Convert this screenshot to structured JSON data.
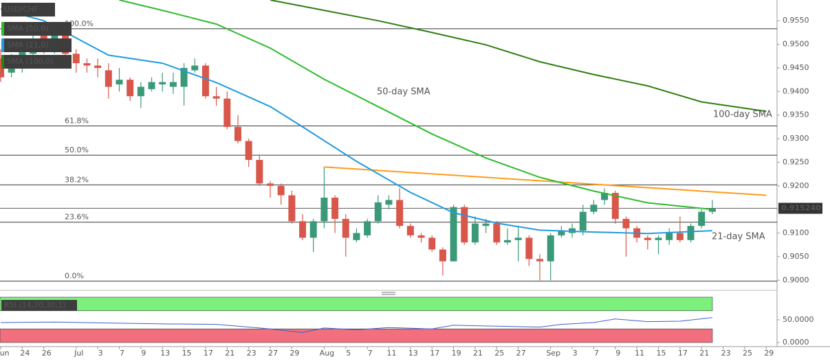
{
  "chart_data": [
    {
      "type": "candlestick",
      "title": "USD/CHF",
      "legend": [
        {
          "name": "SMA (50,0)",
          "color": "#2dbb2d"
        },
        {
          "name": "SMA (21,0)",
          "color": "#1f9ae0"
        },
        {
          "name": "SMA (100,0)",
          "color": "#2f7d12"
        }
      ],
      "up_color": "#3a9a78",
      "down_color": "#d9574a",
      "open": [
        0.947,
        0.944,
        0.946,
        0.948,
        0.952,
        0.949,
        0.952,
        0.948,
        0.946,
        0.9455,
        0.9445,
        0.9415,
        0.9425,
        0.939,
        0.9405,
        0.9415,
        0.941,
        0.941,
        0.9445,
        0.9455,
        0.939,
        0.9385,
        0.9325,
        0.9295,
        0.9255,
        0.9205,
        0.92,
        0.918,
        0.9125,
        0.909,
        0.9125,
        0.9175,
        0.913,
        0.9085,
        0.9095,
        0.9125,
        0.916,
        0.917,
        0.9115,
        0.9095,
        0.909,
        0.9065,
        0.904,
        0.9155,
        0.908,
        0.9115,
        0.912,
        0.908,
        0.9085,
        0.909,
        0.9045,
        0.904,
        0.9095,
        0.91,
        0.9105,
        0.9145,
        0.917,
        0.9185,
        0.913,
        0.911,
        0.909,
        0.9085,
        0.9085,
        0.91,
        0.9085,
        0.9115,
        0.9145
      ],
      "high": [
        0.949,
        0.948,
        0.951,
        0.953,
        0.953,
        0.954,
        0.953,
        0.949,
        0.947,
        0.947,
        0.946,
        0.945,
        0.943,
        0.942,
        0.943,
        0.944,
        0.944,
        0.946,
        0.947,
        0.946,
        0.941,
        0.94,
        0.935,
        0.93,
        0.9265,
        0.921,
        0.9205,
        0.919,
        0.914,
        0.913,
        0.924,
        0.918,
        0.914,
        0.911,
        0.913,
        0.918,
        0.918,
        0.9195,
        0.912,
        0.91,
        0.9095,
        0.907,
        0.916,
        0.916,
        0.9135,
        0.913,
        0.9125,
        0.911,
        0.9115,
        0.9095,
        0.9055,
        0.91,
        0.9115,
        0.912,
        0.916,
        0.917,
        0.9195,
        0.919,
        0.9135,
        0.9115,
        0.9095,
        0.9095,
        0.911,
        0.9135,
        0.912,
        0.915,
        0.917
      ],
      "low": [
        0.942,
        0.943,
        0.944,
        0.947,
        0.948,
        0.948,
        0.947,
        0.944,
        0.944,
        0.943,
        0.9385,
        0.94,
        0.938,
        0.9365,
        0.94,
        0.94,
        0.9395,
        0.937,
        0.944,
        0.9385,
        0.937,
        0.932,
        0.929,
        0.924,
        0.92,
        0.9175,
        0.916,
        0.912,
        0.9085,
        0.906,
        0.911,
        0.91,
        0.905,
        0.908,
        0.909,
        0.912,
        0.915,
        0.911,
        0.909,
        0.908,
        0.906,
        0.901,
        0.904,
        0.9075,
        0.9075,
        0.91,
        0.9075,
        0.9075,
        0.904,
        0.903,
        0.9,
        0.9,
        0.909,
        0.909,
        0.9095,
        0.914,
        0.916,
        0.912,
        0.905,
        0.908,
        0.9065,
        0.9055,
        0.9075,
        0.908,
        0.908,
        0.911,
        0.914
      ],
      "close": [
        0.943,
        0.947,
        0.949,
        0.951,
        0.949,
        0.952,
        0.948,
        0.946,
        0.9455,
        0.945,
        0.941,
        0.9425,
        0.939,
        0.941,
        0.942,
        0.942,
        0.942,
        0.945,
        0.9455,
        0.939,
        0.9385,
        0.9325,
        0.9295,
        0.9255,
        0.9205,
        0.92,
        0.918,
        0.9125,
        0.909,
        0.9125,
        0.9175,
        0.913,
        0.909,
        0.91,
        0.9125,
        0.9165,
        0.917,
        0.9115,
        0.9095,
        0.909,
        0.9065,
        0.904,
        0.9155,
        0.908,
        0.912,
        0.912,
        0.908,
        0.9085,
        0.909,
        0.9045,
        0.904,
        0.9095,
        0.9105,
        0.911,
        0.9145,
        0.916,
        0.9185,
        0.913,
        0.911,
        0.909,
        0.9085,
        0.909,
        0.91,
        0.9085,
        0.9115,
        0.9145,
        0.9152
      ],
      "lines": [
        {
          "name": "50-day SMA",
          "color": "#2dbb2d",
          "x": [
            11,
            15,
            20,
            25,
            30,
            35,
            40,
            45,
            50,
            55,
            60,
            66
          ],
          "values": [
            0.9594,
            0.9572,
            0.9543,
            0.9492,
            0.9426,
            0.9368,
            0.931,
            0.9259,
            0.9218,
            0.9189,
            0.9164,
            0.915
          ]
        },
        {
          "name": "100-day SMA",
          "color": "#2f7d12",
          "x": [
            25,
            30,
            35,
            40,
            45,
            50,
            55,
            60,
            65,
            71
          ],
          "values": [
            0.9594,
            0.9572,
            0.955,
            0.9525,
            0.9499,
            0.9463,
            0.9436,
            0.9412,
            0.9378,
            0.9358
          ]
        },
        {
          "name": "21-day SMA",
          "color": "#1f9ae0",
          "x": [
            0,
            4,
            10,
            15,
            20,
            25,
            28,
            33,
            38,
            42,
            46,
            50,
            55,
            60,
            66
          ],
          "values": [
            0.9575,
            0.955,
            0.9477,
            0.946,
            0.9419,
            0.9368,
            0.9325,
            0.9252,
            0.9186,
            0.9143,
            0.9121,
            0.9106,
            0.9102,
            0.9099,
            0.9105
          ]
        }
      ],
      "trendline": {
        "color": "#ff9a1a",
        "x": [
          30,
          71
        ],
        "values": [
          0.924,
          0.918
        ]
      },
      "fibonacci": [
        {
          "value": 0.9533,
          "label": "100.0%"
        },
        {
          "value": 0.9327,
          "label": "61.8%"
        },
        {
          "value": 0.9265,
          "label": "50.0%"
        },
        {
          "value": 0.9202,
          "label": "38.2%"
        },
        {
          "value": 0.9123,
          "label": "23.6%"
        },
        {
          "value": 0.8998,
          "label": "0.0%"
        }
      ],
      "last_price": {
        "value": 0.91524,
        "label": "0.915240"
      },
      "xlim": [
        0,
        72
      ],
      "ylim": [
        0.898,
        0.9594
      ],
      "yticks": [
        {
          "value": 0.9,
          "label": "0.9000"
        },
        {
          "value": 0.905,
          "label": "0.9050"
        },
        {
          "value": 0.91,
          "label": "0.9100"
        },
        {
          "value": 0.915,
          "label": "0.9150"
        },
        {
          "value": 0.92,
          "label": "0.9200"
        },
        {
          "value": 0.925,
          "label": "0.9250"
        },
        {
          "value": 0.93,
          "label": "0.9300"
        },
        {
          "value": 0.935,
          "label": "0.9350"
        },
        {
          "value": 0.94,
          "label": "0.9400"
        },
        {
          "value": 0.945,
          "label": "0.9450"
        },
        {
          "value": 0.95,
          "label": "0.9500"
        },
        {
          "value": 0.955,
          "label": "0.9550"
        }
      ],
      "xticks": [
        {
          "value": 0,
          "label": "Jun"
        },
        {
          "value": 2,
          "label": "24"
        },
        {
          "value": 4,
          "label": "26"
        },
        {
          "value": 7,
          "label": "Jul"
        },
        {
          "value": 9,
          "label": "3"
        },
        {
          "value": 11,
          "label": "7"
        },
        {
          "value": 13,
          "label": "9"
        },
        {
          "value": 15,
          "label": "13"
        },
        {
          "value": 17,
          "label": "15"
        },
        {
          "value": 19,
          "label": "17"
        },
        {
          "value": 21,
          "label": "21"
        },
        {
          "value": 23,
          "label": "23"
        },
        {
          "value": 25,
          "label": "27"
        },
        {
          "value": 27,
          "label": "29"
        },
        {
          "value": 30,
          "label": "Aug"
        },
        {
          "value": 32,
          "label": "5"
        },
        {
          "value": 34,
          "label": "7"
        },
        {
          "value": 36,
          "label": "11"
        },
        {
          "value": 38,
          "label": "13"
        },
        {
          "value": 40,
          "label": "17"
        },
        {
          "value": 42,
          "label": "19"
        },
        {
          "value": 44,
          "label": "21"
        },
        {
          "value": 46,
          "label": "25"
        },
        {
          "value": 48,
          "label": "27"
        },
        {
          "value": 51,
          "label": "Sep"
        },
        {
          "value": 53,
          "label": "3"
        },
        {
          "value": 55,
          "label": "7"
        },
        {
          "value": 57,
          "label": "9"
        },
        {
          "value": 59,
          "label": "11"
        },
        {
          "value": 61,
          "label": "15"
        },
        {
          "value": 63,
          "label": "17"
        },
        {
          "value": 65,
          "label": "21"
        },
        {
          "value": 67,
          "label": "23"
        },
        {
          "value": 69,
          "label": "25"
        },
        {
          "value": 71,
          "label": "29"
        }
      ]
    },
    {
      "type": "line",
      "title": "RSI (14,70,30,1)",
      "bands": [
        {
          "range": [
            70,
            100
          ],
          "color": "#7cf07c"
        },
        {
          "range": [
            0,
            30
          ],
          "color": "#f2707e"
        }
      ],
      "series": [
        {
          "color": "#3a5fcd",
          "x": [
            0,
            5,
            10,
            15,
            20,
            25,
            28,
            30,
            33,
            36,
            40,
            42,
            46,
            50,
            52,
            55,
            57,
            60,
            63,
            66
          ],
          "values": [
            44,
            45,
            43,
            41,
            40,
            30,
            22,
            32,
            28,
            33,
            30,
            38,
            36,
            34,
            40,
            44,
            52,
            46,
            47,
            55
          ]
        }
      ],
      "xlim": [
        0,
        72
      ],
      "ylim": [
        0,
        100
      ],
      "yticks": [
        {
          "value": 50,
          "label": "50.0000"
        },
        {
          "value": 0,
          "label": "0.0000"
        }
      ]
    }
  ]
}
